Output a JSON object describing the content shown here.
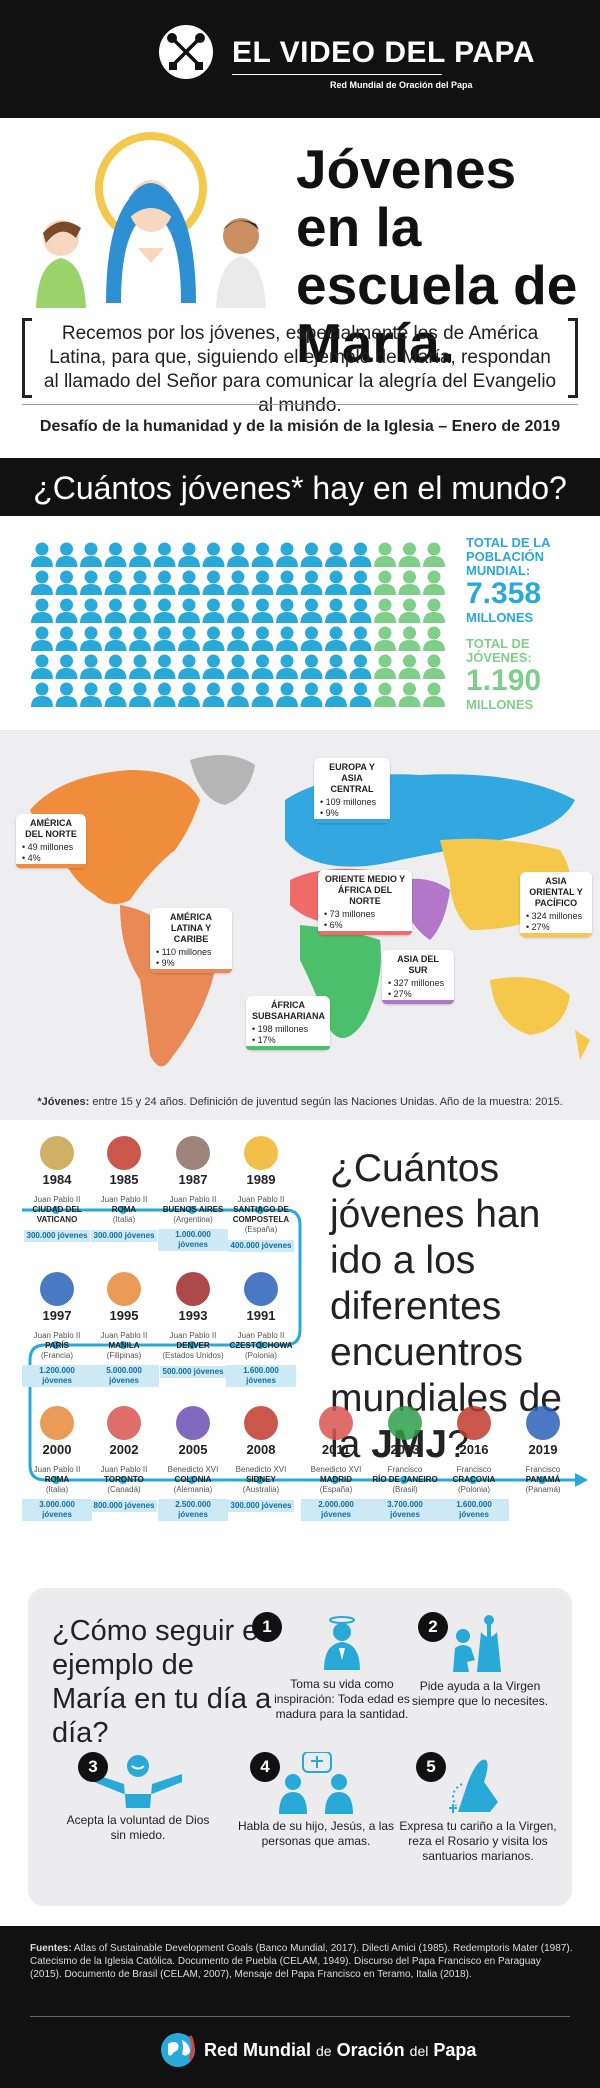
{
  "header": {
    "brand": "EL VIDEO DEL PAPA",
    "subtitle": "Red Mundial de Oración del Papa",
    "logo_icon": "crossed-keys-icon"
  },
  "title": "Jóvenes en la escuela de María.",
  "prayer": "Recemos por los jóvenes, especialmente los de América Latina, para que, siguiendo el ejemplo de María, respondan al llamado del Señor para comunicar la alegría del Evangelio al mundo.",
  "challenge": "Desafío de la humanidad y de la misión de la Iglesia – Enero de 2019",
  "question1": "¿Cuántos jóvenes* hay en el mundo?",
  "population": {
    "total_label": "TOTAL DE LA POBLACIÓN MUNDIAL:",
    "total_value": "7.358",
    "total_unit": "MILLONES",
    "youth_label": "TOTAL DE JÓVENES:",
    "youth_value": "1.190",
    "youth_unit": "MILLONES",
    "color_total": "#29a9d8",
    "color_youth": "#7fcf8b"
  },
  "regions": [
    {
      "name": "AMÉRICA DEL NORTE",
      "people": "• 49 millones",
      "pct": "• 4%",
      "color": "#f08d3c"
    },
    {
      "name": "AMÉRICA LATINA Y CARIBE",
      "people": "• 110 millones",
      "pct": "• 9%",
      "color": "#e98a56"
    },
    {
      "name": "EUROPA Y ASIA CENTRAL",
      "people": "• 109 millones",
      "pct": "• 9%",
      "color": "#33a8e0"
    },
    {
      "name": "ORIENTE MEDIO Y ÁFRICA DEL NORTE",
      "people": "• 73 millones",
      "pct": "• 6%",
      "color": "#f06a6a"
    },
    {
      "name": "ASIA ORIENTAL Y PACÍFICO",
      "people": "• 324 millones",
      "pct": "• 27%",
      "color": "#f5c74a"
    },
    {
      "name": "ASIA DEL SUR",
      "people": "• 327 millones",
      "pct": "• 27%",
      "color": "#b277c9"
    },
    {
      "name": "ÁFRICA SUBSAHARIANA",
      "people": "• 198 millones",
      "pct": "• 17%",
      "color": "#4cbf6c"
    }
  ],
  "footnote_bold": "*Jóvenes:",
  "footnote": "entre 15 y 24 años. Definición de juventud según las Naciones Unidas. Año de la muestra: 2015.",
  "question2_a": "¿Cuántos jóvenes han ido a los diferentes encuentros mundiales de la",
  "question2_b": "JMJ",
  "question2_c": "?",
  "events": [
    {
      "year": "1984",
      "pope": "Juan Pablo II",
      "city": "CIUDAD DEL VATICANO",
      "country": "",
      "count": "300.000 jóvenes"
    },
    {
      "year": "1985",
      "pope": "Juan Pablo II",
      "city": "ROMA",
      "country": "(Italia)",
      "count": "300.000 jóvenes"
    },
    {
      "year": "1987",
      "pope": "Juan Pablo II",
      "city": "BUENOS AIRES",
      "country": "(Argentina)",
      "count": "1.000.000 jóvenes"
    },
    {
      "year": "1989",
      "pope": "Juan Pablo II",
      "city": "SANTIAGO DE COMPOSTELA",
      "country": "(España)",
      "count": "400.000 jóvenes"
    },
    {
      "year": "1997",
      "pope": "Juan Pablo II",
      "city": "PARÍS",
      "country": "(Francia)",
      "count": "1.200.000 jóvenes"
    },
    {
      "year": "1995",
      "pope": "Juan Pablo II",
      "city": "MANILA",
      "country": "(Filipinas)",
      "count": "5.000.000 jóvenes"
    },
    {
      "year": "1993",
      "pope": "Juan Pablo II",
      "city": "DENVER",
      "country": "(Estados Unidos)",
      "count": "500.000 jóvenes"
    },
    {
      "year": "1991",
      "pope": "Juan Pablo II",
      "city": "CZESTOCHOWA",
      "country": "(Polonia)",
      "count": "1.600.000 jóvenes"
    },
    {
      "year": "2000",
      "pope": "Juan Pablo II",
      "city": "ROMA",
      "country": "(Italia)",
      "count": "3.000.000 jóvenes"
    },
    {
      "year": "2002",
      "pope": "Juan Pablo II",
      "city": "TORONTO",
      "country": "(Canadá)",
      "count": "800.000 jóvenes"
    },
    {
      "year": "2005",
      "pope": "Benedicto XVI",
      "city": "COLONIA",
      "country": "(Alemania)",
      "count": "2.500.000 jóvenes"
    },
    {
      "year": "2008",
      "pope": "Benedicto XVI",
      "city": "SIDNEY",
      "country": "(Australia)",
      "count": "300.000 jóvenes"
    },
    {
      "year": "2011",
      "pope": "Benedicto XVI",
      "city": "MADRID",
      "country": "(España)",
      "count": "2.000.000 jóvenes"
    },
    {
      "year": "2013",
      "pope": "Francisco",
      "city": "RÍO DE JANEIRO",
      "country": "(Brasil)",
      "count": "3.700.000 jóvenes"
    },
    {
      "year": "2016",
      "pope": "Francisco",
      "city": "CRACOVIA",
      "country": "(Polonia)",
      "count": "1.600.000 jóvenes"
    },
    {
      "year": "2019",
      "pope": "Francisco",
      "city": "PANAMÁ",
      "country": "(Panamá)",
      "count": ""
    }
  ],
  "question3": "¿Cómo seguir el ejemplo de María en tu día a día?",
  "steps": [
    {
      "num": "1",
      "text": "Toma su vida como inspiración: Toda edad es madura para la santidad.",
      "icon": "praying-person-icon"
    },
    {
      "num": "2",
      "text": "Pide ayuda a la Virgen siempre que lo necesites.",
      "icon": "kneeling-person-icon"
    },
    {
      "num": "3",
      "text": "Acepta la voluntad de Dios sin miedo.",
      "icon": "open-arms-person-icon"
    },
    {
      "num": "4",
      "text": "Habla de su hijo, Jesús, a las personas que amas.",
      "icon": "talking-people-icon"
    },
    {
      "num": "5",
      "text": "Expresa tu cariño a la Virgen, reza el Rosario y visita los santuarios marianos.",
      "icon": "rosary-hands-icon"
    }
  ],
  "sources_bold": "Fuentes:",
  "sources": "Atlas of Sustainable Development Goals (Banco Mundial, 2017). Dilecti Amici (1985). Redemptoris Mater (1987). Catecismo de la Iglesia Católica. Documento de Puebla (CELAM, 1949). Discurso del Papa Francisco en Paraguay (2015). Documento de Brasil (CELAM, 2007), Mensaje del Papa Francisco en Teramo, Italia (2018).",
  "footer": {
    "a": "Red Mundial",
    "b": "de",
    "c": "Oración",
    "d": "del",
    "e": "Papa",
    "icon": "globe-icon"
  }
}
